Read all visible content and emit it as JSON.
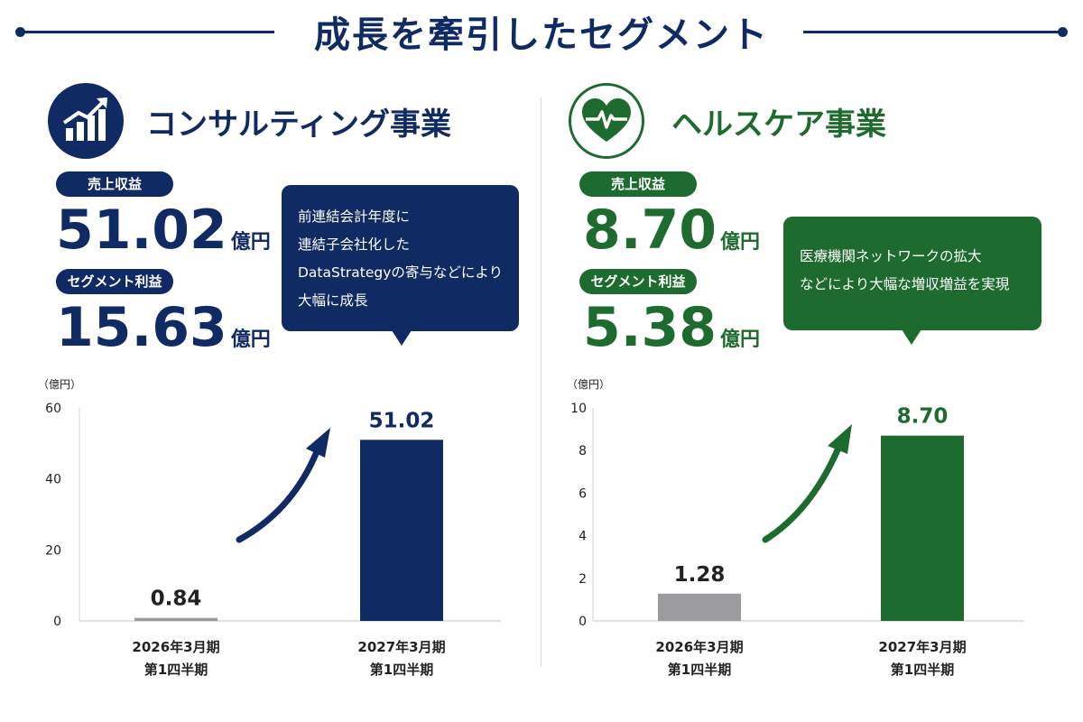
{
  "header": {
    "title": "成長を牽引したセグメント"
  },
  "colors": {
    "consulting": "#102a63",
    "healthcare": "#1e6b30",
    "previous_bar": "#9b9b9d"
  },
  "consulting": {
    "icon": "bar-chart-growth-icon",
    "title": "コンサルティング事業",
    "revenue_label": "売上収益",
    "revenue_value": "51.02",
    "revenue_unit": "億円",
    "profit_label": "セグメント利益",
    "profit_value": "15.63",
    "profit_unit": "億円",
    "callout": [
      "前連結会計年度に",
      "連結子会社化した",
      "DataStrategyの寄与などにより",
      "大幅に成長"
    ]
  },
  "healthcare": {
    "icon": "heart-pulse-icon",
    "title": "ヘルスケア事業",
    "revenue_label": "売上収益",
    "revenue_value": "8.70",
    "revenue_unit": "億円",
    "profit_label": "セグメント利益",
    "profit_value": "5.38",
    "profit_unit": "億円",
    "callout": [
      "医療機関ネットワークの拡大",
      "などにより大幅な増収増益を実現"
    ]
  },
  "chart_data": [
    {
      "type": "bar",
      "segment": "consulting",
      "unit_label": "（億円）",
      "categories": [
        [
          "2026年3月期",
          "第1四半期"
        ],
        [
          "2027年3月期",
          "第1四半期"
        ]
      ],
      "values": [
        0.84,
        51.02
      ],
      "value_labels": [
        "0.84",
        "51.02"
      ],
      "ylim": [
        0,
        60
      ],
      "yticks": [
        0,
        20,
        40,
        60
      ]
    },
    {
      "type": "bar",
      "segment": "healthcare",
      "unit_label": "（億円）",
      "categories": [
        [
          "2026年3月期",
          "第1四半期"
        ],
        [
          "2027年3月期",
          "第1四半期"
        ]
      ],
      "values": [
        1.28,
        8.7
      ],
      "value_labels": [
        "1.28",
        "8.70"
      ],
      "ylim": [
        0,
        10
      ],
      "yticks": [
        0,
        2,
        4,
        6,
        8,
        10
      ]
    }
  ]
}
